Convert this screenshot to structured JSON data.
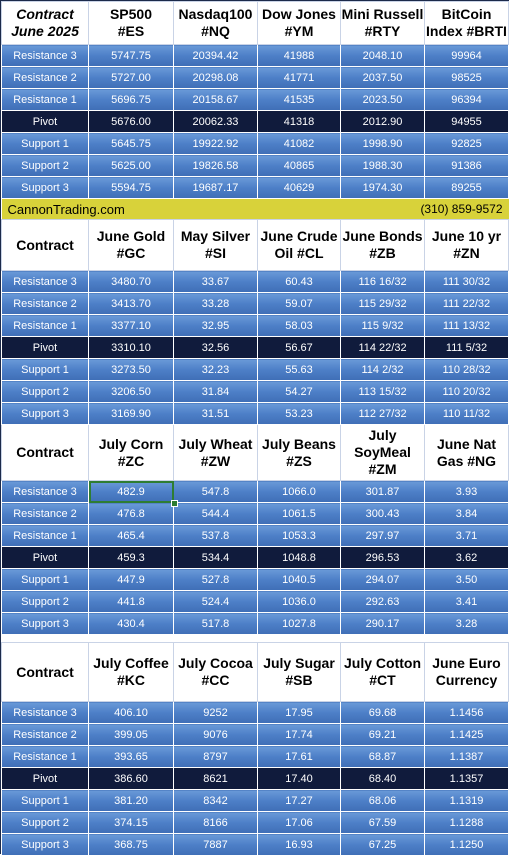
{
  "section1": {
    "header": {
      "contract_line1": "Contract",
      "contract_line2": "June 2025",
      "columns": [
        {
          "line1": "SP500",
          "line2": "#ES"
        },
        {
          "line1": "Nasdaq100",
          "line2": "#NQ"
        },
        {
          "line1": "Dow Jones",
          "line2": "#YM"
        },
        {
          "line1": "Mini Russell",
          "line2": "#RTY"
        },
        {
          "line1": "BitCoin",
          "line2": "Index #BRTI"
        }
      ]
    },
    "rows": [
      {
        "label": "Resistance 3",
        "values": [
          "5747.75",
          "20394.42",
          "41988",
          "2048.10",
          "99964"
        ]
      },
      {
        "label": "Resistance 2",
        "values": [
          "5727.00",
          "20298.08",
          "41771",
          "2037.50",
          "98525"
        ]
      },
      {
        "label": "Resistance 1",
        "values": [
          "5696.75",
          "20158.67",
          "41535",
          "2023.50",
          "96394"
        ]
      },
      {
        "label": "Pivot",
        "values": [
          "5676.00",
          "20062.33",
          "41318",
          "2012.90",
          "94955"
        ]
      },
      {
        "label": "Support 1",
        "values": [
          "5645.75",
          "19922.92",
          "41082",
          "1998.90",
          "92825"
        ]
      },
      {
        "label": "Support 2",
        "values": [
          "5625.00",
          "19826.58",
          "40865",
          "1988.30",
          "91386"
        ]
      },
      {
        "label": "Support 3",
        "values": [
          "5594.75",
          "19687.17",
          "40629",
          "1974.30",
          "89255"
        ]
      }
    ]
  },
  "banner": {
    "site": "CannonTrading.com",
    "phone": "(310) 859-9572",
    "color": "#d8d23a"
  },
  "section2": {
    "header": {
      "contract": "Contract",
      "columns": [
        {
          "line1": "June Gold",
          "line2": "#GC"
        },
        {
          "line1": "May Silver",
          "line2": "#SI"
        },
        {
          "line1": "June Crude",
          "line2": "Oil #CL"
        },
        {
          "line1": "June Bonds",
          "line2": "#ZB"
        },
        {
          "line1": "June 10 yr",
          "line2": "#ZN"
        }
      ]
    },
    "rows": [
      {
        "label": "Resistance 3",
        "values": [
          "3480.70",
          "33.67",
          "60.43",
          "116 16/32",
          "111 30/32"
        ]
      },
      {
        "label": "Resistance 2",
        "values": [
          "3413.70",
          "33.28",
          "59.07",
          "115 29/32",
          "111 22/32"
        ]
      },
      {
        "label": "Resistance 1",
        "values": [
          "3377.10",
          "32.95",
          "58.03",
          "115  9/32",
          "111 13/32"
        ]
      },
      {
        "label": "Pivot",
        "values": [
          "3310.10",
          "32.56",
          "56.67",
          "114 22/32",
          "111  5/32"
        ]
      },
      {
        "label": "Support 1",
        "values": [
          "3273.50",
          "32.23",
          "55.63",
          "114  2/32",
          "110 28/32"
        ]
      },
      {
        "label": "Support 2",
        "values": [
          "3206.50",
          "31.84",
          "54.27",
          "113 15/32",
          "110 20/32"
        ]
      },
      {
        "label": "Support 3",
        "values": [
          "3169.90",
          "31.51",
          "53.23",
          "112 27/32",
          "110 11/32"
        ]
      }
    ]
  },
  "section3": {
    "header": {
      "contract": "Contract",
      "columns": [
        {
          "line1": "July Corn",
          "line2": "#ZC"
        },
        {
          "line1": "July  Wheat",
          "line2": "#ZW"
        },
        {
          "line1": "July Beans",
          "line2": "#ZS"
        },
        {
          "line1": "July",
          "line2": "SoyMeal",
          "line3": "#ZM"
        },
        {
          "line1": "June Nat",
          "line2": "Gas #NG"
        }
      ]
    },
    "rows": [
      {
        "label": "Resistance 3",
        "values": [
          "482.9",
          "547.8",
          "1066.0",
          "301.87",
          "3.93"
        ]
      },
      {
        "label": "Resistance 2",
        "values": [
          "476.8",
          "544.4",
          "1061.5",
          "300.43",
          "3.84"
        ]
      },
      {
        "label": "Resistance 1",
        "values": [
          "465.4",
          "537.8",
          "1053.3",
          "297.97",
          "3.71"
        ]
      },
      {
        "label": "Pivot",
        "values": [
          "459.3",
          "534.4",
          "1048.8",
          "296.53",
          "3.62"
        ]
      },
      {
        "label": "Support 1",
        "values": [
          "447.9",
          "527.8",
          "1040.5",
          "294.07",
          "3.50"
        ]
      },
      {
        "label": "Support 2",
        "values": [
          "441.8",
          "524.4",
          "1036.0",
          "292.63",
          "3.41"
        ]
      },
      {
        "label": "Support 3",
        "values": [
          "430.4",
          "517.8",
          "1027.8",
          "290.17",
          "3.28"
        ]
      }
    ]
  },
  "section4": {
    "header": {
      "contract": "Contract",
      "columns": [
        {
          "line1": "July Coffee",
          "line2": "#KC"
        },
        {
          "line1": "July Cocoa",
          "line2": "#CC"
        },
        {
          "line1": "July Sugar",
          "line2": "#SB"
        },
        {
          "line1": "July Cotton",
          "line2": "#CT"
        },
        {
          "line1": "June Euro",
          "line2": "Currency"
        }
      ]
    },
    "rows": [
      {
        "label": "Resistance 3",
        "values": [
          "406.10",
          "9252",
          "17.95",
          "69.68",
          "1.1456"
        ]
      },
      {
        "label": "Resistance 2",
        "values": [
          "399.05",
          "9076",
          "17.74",
          "69.21",
          "1.1425"
        ]
      },
      {
        "label": "Resistance 1",
        "values": [
          "393.65",
          "8797",
          "17.61",
          "68.87",
          "1.1387"
        ]
      },
      {
        "label": "Pivot",
        "values": [
          "386.60",
          "8621",
          "17.40",
          "68.40",
          "1.1357"
        ]
      },
      {
        "label": "Support 1",
        "values": [
          "381.20",
          "8342",
          "17.27",
          "68.06",
          "1.1319"
        ]
      },
      {
        "label": "Support 2",
        "values": [
          "374.15",
          "8166",
          "17.06",
          "67.59",
          "1.1288"
        ]
      },
      {
        "label": "Support 3",
        "values": [
          "368.75",
          "7887",
          "16.93",
          "67.25",
          "1.1250"
        ]
      }
    ]
  },
  "colors": {
    "row_blue": "#4d7fc7",
    "pivot_dark": "#101b3c",
    "selection_green": "#2e7d32"
  }
}
